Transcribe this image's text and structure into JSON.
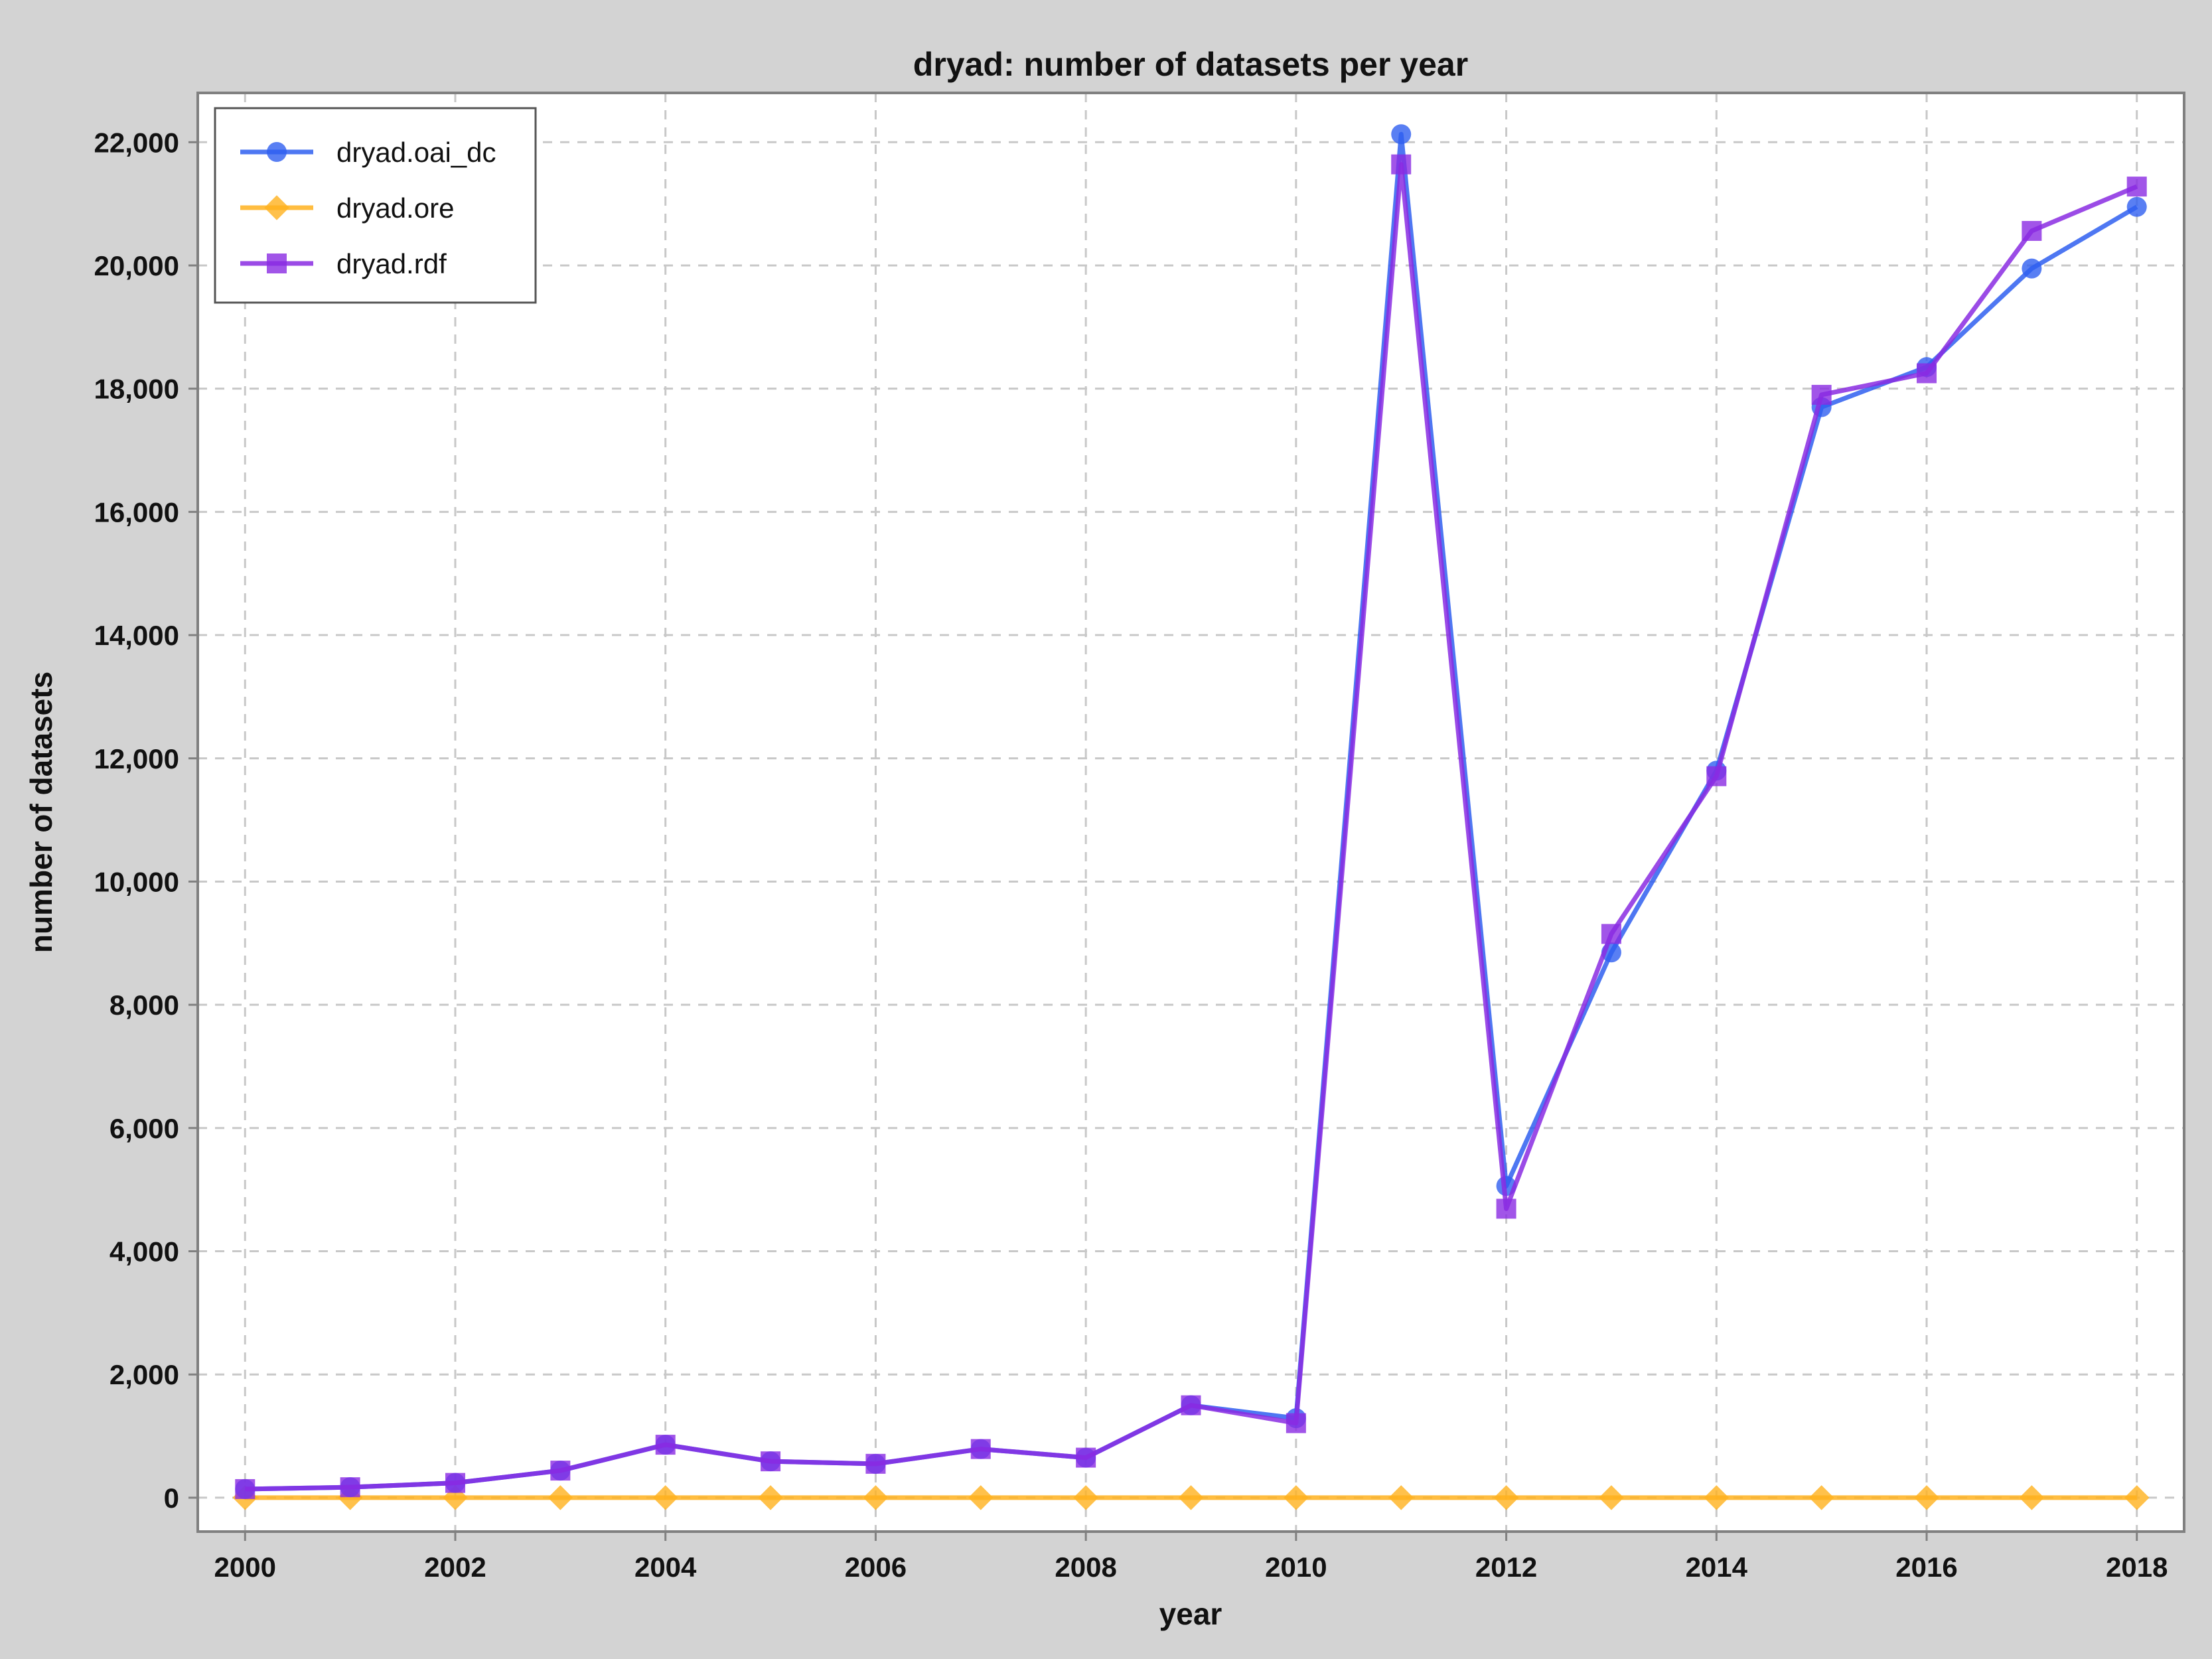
{
  "chart_data": {
    "type": "line",
    "title": "dryad: number of datasets per year",
    "xlabel": "year",
    "ylabel": "number of datasets",
    "x": [
      2000,
      2001,
      2002,
      2003,
      2004,
      2005,
      2006,
      2007,
      2008,
      2009,
      2010,
      2011,
      2012,
      2013,
      2014,
      2015,
      2016,
      2017,
      2018
    ],
    "xlim": [
      1999.55,
      2018.45
    ],
    "ylim": [
      -550,
      22800
    ],
    "xticks": [
      "2000",
      "2002",
      "2004",
      "2006",
      "2008",
      "2010",
      "2012",
      "2014",
      "2016",
      "2018"
    ],
    "yticks": [
      "0",
      "2,000",
      "4,000",
      "6,000",
      "8,000",
      "10,000",
      "12,000",
      "14,000",
      "16,000",
      "18,000",
      "20,000",
      "22,000"
    ],
    "grid": true,
    "legend_position": "top-left",
    "series": [
      {
        "name": "dryad.oai_dc",
        "color": "#2f5ff0",
        "marker": "circle",
        "values": [
          140,
          170,
          240,
          440,
          860,
          590,
          550,
          790,
          650,
          1500,
          1290,
          22130,
          5060,
          8850,
          11800,
          17700,
          18350,
          19950,
          20950
        ]
      },
      {
        "name": "dryad.ore",
        "color": "#ffb21e",
        "marker": "diamond",
        "values": [
          0,
          0,
          0,
          0,
          0,
          0,
          0,
          0,
          0,
          0,
          0,
          0,
          0,
          0,
          0,
          0,
          0,
          0,
          0
        ]
      },
      {
        "name": "dryad.rdf",
        "color": "#8a2be2",
        "marker": "square",
        "values": [
          140,
          170,
          240,
          440,
          860,
          590,
          550,
          790,
          650,
          1500,
          1210,
          21640,
          4690,
          9150,
          11710,
          17900,
          18250,
          20560,
          21280
        ]
      }
    ]
  }
}
